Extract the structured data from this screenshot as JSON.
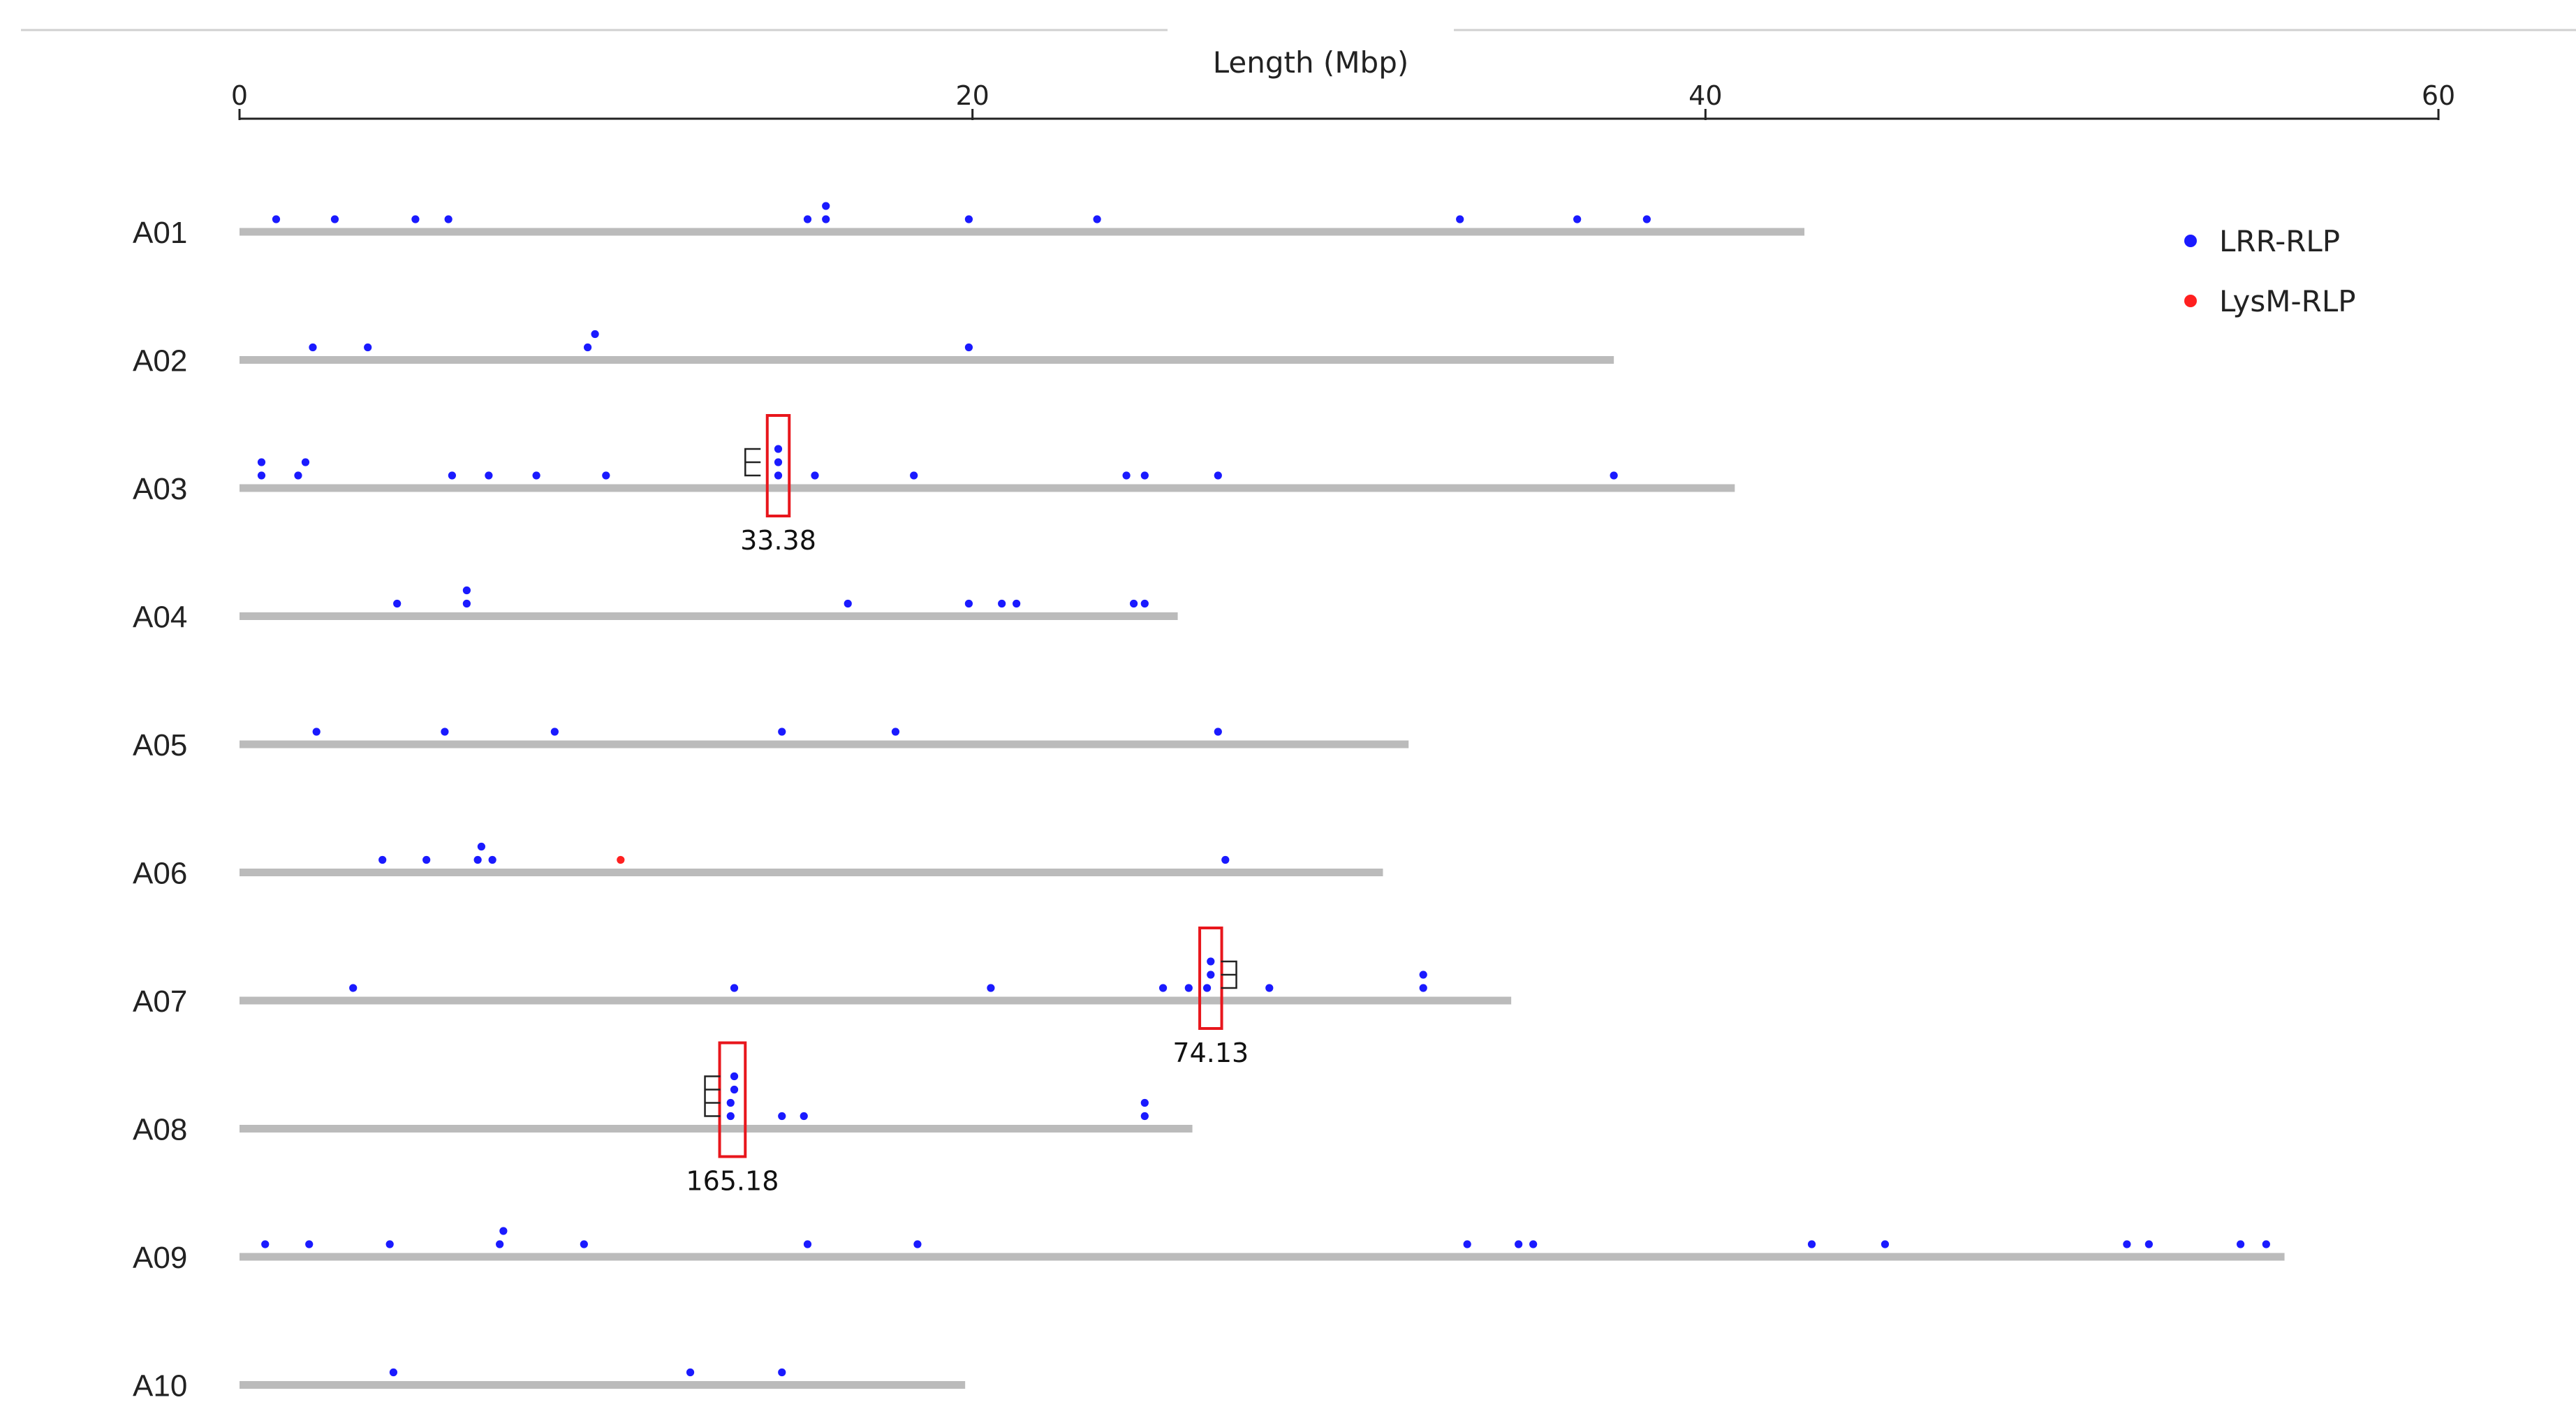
{
  "chart_data": {
    "type": "scatter",
    "title": "",
    "xlabel": "Length (Mbp)",
    "ylabel": "",
    "xlim": [
      0,
      60
    ],
    "x_ticks": [
      "0",
      "20",
      "40",
      "60"
    ],
    "grid": false,
    "legend": {
      "placement": "top-right",
      "items": [
        {
          "name": "LRR-RLP",
          "color": "#1a1aff"
        },
        {
          "name": "LysM-RLP",
          "color": "#ff2020"
        }
      ]
    },
    "colors": {
      "bar": "#bbbbbb",
      "box": "#e8161c",
      "bracket": "#222222",
      "axis": "#222222"
    },
    "chromosomes": [
      {
        "name": "A01",
        "length": 42.7,
        "genes": [
          {
            "x": 1.0,
            "s": 0,
            "t": "LRR-RLP"
          },
          {
            "x": 2.6,
            "s": 0,
            "t": "LRR-RLP"
          },
          {
            "x": 4.8,
            "s": 0,
            "t": "LRR-RLP"
          },
          {
            "x": 5.7,
            "s": 0,
            "t": "LRR-RLP"
          },
          {
            "x": 15.5,
            "s": 0,
            "t": "LRR-RLP"
          },
          {
            "x": 16.0,
            "s": 0,
            "t": "LRR-RLP"
          },
          {
            "x": 16.0,
            "s": 1,
            "t": "LRR-RLP"
          },
          {
            "x": 19.9,
            "s": 0,
            "t": "LRR-RLP"
          },
          {
            "x": 23.4,
            "s": 0,
            "t": "LRR-RLP"
          },
          {
            "x": 33.3,
            "s": 0,
            "t": "LRR-RLP"
          },
          {
            "x": 36.5,
            "s": 0,
            "t": "LRR-RLP"
          },
          {
            "x": 38.4,
            "s": 0,
            "t": "LRR-RLP"
          }
        ]
      },
      {
        "name": "A02",
        "length": 37.5,
        "genes": [
          {
            "x": 2.0,
            "s": 0,
            "t": "LRR-RLP"
          },
          {
            "x": 3.5,
            "s": 0,
            "t": "LRR-RLP"
          },
          {
            "x": 9.5,
            "s": 0,
            "t": "LRR-RLP"
          },
          {
            "x": 9.7,
            "s": 1,
            "t": "LRR-RLP"
          },
          {
            "x": 19.9,
            "s": 0,
            "t": "LRR-RLP"
          }
        ]
      },
      {
        "name": "A03",
        "length": 40.8,
        "genes": [
          {
            "x": 0.6,
            "s": 0,
            "t": "LRR-RLP"
          },
          {
            "x": 0.6,
            "s": 1,
            "t": "LRR-RLP"
          },
          {
            "x": 1.6,
            "s": 0,
            "t": "LRR-RLP"
          },
          {
            "x": 1.8,
            "s": 1,
            "t": "LRR-RLP"
          },
          {
            "x": 5.8,
            "s": 0,
            "t": "LRR-RLP"
          },
          {
            "x": 6.8,
            "s": 0,
            "t": "LRR-RLP"
          },
          {
            "x": 8.1,
            "s": 0,
            "t": "LRR-RLP"
          },
          {
            "x": 10.0,
            "s": 0,
            "t": "LRR-RLP"
          },
          {
            "x": 14.7,
            "s": 0,
            "t": "LRR-RLP"
          },
          {
            "x": 14.7,
            "s": 1,
            "t": "LRR-RLP"
          },
          {
            "x": 14.7,
            "s": 2,
            "t": "LRR-RLP"
          },
          {
            "x": 15.7,
            "s": 0,
            "t": "LRR-RLP"
          },
          {
            "x": 18.4,
            "s": 0,
            "t": "LRR-RLP"
          },
          {
            "x": 24.2,
            "s": 0,
            "t": "LRR-RLP"
          },
          {
            "x": 24.7,
            "s": 0,
            "t": "LRR-RLP"
          },
          {
            "x": 26.7,
            "s": 0,
            "t": "LRR-RLP"
          },
          {
            "x": 37.5,
            "s": 0,
            "t": "LRR-RLP"
          }
        ]
      },
      {
        "name": "A04",
        "length": 25.6,
        "genes": [
          {
            "x": 4.3,
            "s": 0,
            "t": "LRR-RLP"
          },
          {
            "x": 6.2,
            "s": 0,
            "t": "LRR-RLP"
          },
          {
            "x": 6.2,
            "s": 1,
            "t": "LRR-RLP"
          },
          {
            "x": 16.6,
            "s": 0,
            "t": "LRR-RLP"
          },
          {
            "x": 19.9,
            "s": 0,
            "t": "LRR-RLP"
          },
          {
            "x": 20.8,
            "s": 0,
            "t": "LRR-RLP"
          },
          {
            "x": 21.2,
            "s": 0,
            "t": "LRR-RLP"
          },
          {
            "x": 24.4,
            "s": 0,
            "t": "LRR-RLP"
          },
          {
            "x": 24.7,
            "s": 0,
            "t": "LRR-RLP"
          }
        ]
      },
      {
        "name": "A05",
        "length": 31.9,
        "genes": [
          {
            "x": 2.1,
            "s": 0,
            "t": "LRR-RLP"
          },
          {
            "x": 5.6,
            "s": 0,
            "t": "LRR-RLP"
          },
          {
            "x": 8.6,
            "s": 0,
            "t": "LRR-RLP"
          },
          {
            "x": 14.8,
            "s": 0,
            "t": "LRR-RLP"
          },
          {
            "x": 17.9,
            "s": 0,
            "t": "LRR-RLP"
          },
          {
            "x": 26.7,
            "s": 0,
            "t": "LRR-RLP"
          }
        ]
      },
      {
        "name": "A06",
        "length": 31.2,
        "genes": [
          {
            "x": 3.9,
            "s": 0,
            "t": "LRR-RLP"
          },
          {
            "x": 5.1,
            "s": 0,
            "t": "LRR-RLP"
          },
          {
            "x": 6.5,
            "s": 0,
            "t": "LRR-RLP"
          },
          {
            "x": 6.9,
            "s": 0,
            "t": "LRR-RLP"
          },
          {
            "x": 6.6,
            "s": 1,
            "t": "LRR-RLP"
          },
          {
            "x": 10.4,
            "s": 0,
            "t": "LysM-RLP"
          },
          {
            "x": 26.9,
            "s": 0,
            "t": "LRR-RLP"
          }
        ]
      },
      {
        "name": "A07",
        "length": 34.7,
        "genes": [
          {
            "x": 3.1,
            "s": 0,
            "t": "LRR-RLP"
          },
          {
            "x": 13.5,
            "s": 0,
            "t": "LRR-RLP"
          },
          {
            "x": 20.5,
            "s": 0,
            "t": "LRR-RLP"
          },
          {
            "x": 25.2,
            "s": 0,
            "t": "LRR-RLP"
          },
          {
            "x": 25.9,
            "s": 0,
            "t": "LRR-RLP"
          },
          {
            "x": 26.4,
            "s": 0,
            "t": "LRR-RLP"
          },
          {
            "x": 26.5,
            "s": 1,
            "t": "LRR-RLP"
          },
          {
            "x": 26.5,
            "s": 2,
            "t": "LRR-RLP"
          },
          {
            "x": 28.1,
            "s": 0,
            "t": "LRR-RLP"
          },
          {
            "x": 32.3,
            "s": 0,
            "t": "LRR-RLP"
          },
          {
            "x": 32.3,
            "s": 1,
            "t": "LRR-RLP"
          }
        ]
      },
      {
        "name": "A08",
        "length": 26.0,
        "genes": [
          {
            "x": 13.4,
            "s": 0,
            "t": "LRR-RLP"
          },
          {
            "x": 13.4,
            "s": 1,
            "t": "LRR-RLP"
          },
          {
            "x": 13.5,
            "s": 2,
            "t": "LRR-RLP"
          },
          {
            "x": 13.5,
            "s": 3,
            "t": "LRR-RLP"
          },
          {
            "x": 14.8,
            "s": 0,
            "t": "LRR-RLP"
          },
          {
            "x": 15.4,
            "s": 0,
            "t": "LRR-RLP"
          },
          {
            "x": 24.7,
            "s": 0,
            "t": "LRR-RLP"
          },
          {
            "x": 24.7,
            "s": 1,
            "t": "LRR-RLP"
          }
        ]
      },
      {
        "name": "A09",
        "length": 55.8,
        "genes": [
          {
            "x": 0.7,
            "s": 0,
            "t": "LRR-RLP"
          },
          {
            "x": 1.9,
            "s": 0,
            "t": "LRR-RLP"
          },
          {
            "x": 4.1,
            "s": 0,
            "t": "LRR-RLP"
          },
          {
            "x": 7.1,
            "s": 0,
            "t": "LRR-RLP"
          },
          {
            "x": 7.2,
            "s": 1,
            "t": "LRR-RLP"
          },
          {
            "x": 9.4,
            "s": 0,
            "t": "LRR-RLP"
          },
          {
            "x": 15.5,
            "s": 0,
            "t": "LRR-RLP"
          },
          {
            "x": 18.5,
            "s": 0,
            "t": "LRR-RLP"
          },
          {
            "x": 33.5,
            "s": 0,
            "t": "LRR-RLP"
          },
          {
            "x": 34.9,
            "s": 0,
            "t": "LRR-RLP"
          },
          {
            "x": 35.3,
            "s": 0,
            "t": "LRR-RLP"
          },
          {
            "x": 42.9,
            "s": 0,
            "t": "LRR-RLP"
          },
          {
            "x": 44.9,
            "s": 0,
            "t": "LRR-RLP"
          },
          {
            "x": 51.5,
            "s": 0,
            "t": "LRR-RLP"
          },
          {
            "x": 52.1,
            "s": 0,
            "t": "LRR-RLP"
          },
          {
            "x": 54.6,
            "s": 0,
            "t": "LRR-RLP"
          },
          {
            "x": 55.3,
            "s": 0,
            "t": "LRR-RLP"
          }
        ]
      },
      {
        "name": "A10",
        "length": 19.8,
        "genes": [
          {
            "x": 4.2,
            "s": 0,
            "t": "LRR-RLP"
          },
          {
            "x": 12.3,
            "s": 0,
            "t": "LRR-RLP"
          },
          {
            "x": 14.8,
            "s": 0,
            "t": "LRR-RLP"
          }
        ]
      }
    ],
    "clusters": [
      {
        "chromosome": "A03",
        "label": "33.38",
        "x_from": 14.4,
        "x_to": 15.0,
        "bracket_side": "left",
        "bracket_x": 13.8,
        "gene_count": 3
      },
      {
        "chromosome": "A07",
        "label": "74.13",
        "x_from": 26.2,
        "x_to": 26.8,
        "bracket_side": "right",
        "bracket_x": 27.2,
        "gene_count": 3
      },
      {
        "chromosome": "A08",
        "label": "165.18",
        "x_from": 13.1,
        "x_to": 13.8,
        "bracket_side": "left",
        "bracket_x": 12.7,
        "gene_count": 4
      }
    ]
  }
}
